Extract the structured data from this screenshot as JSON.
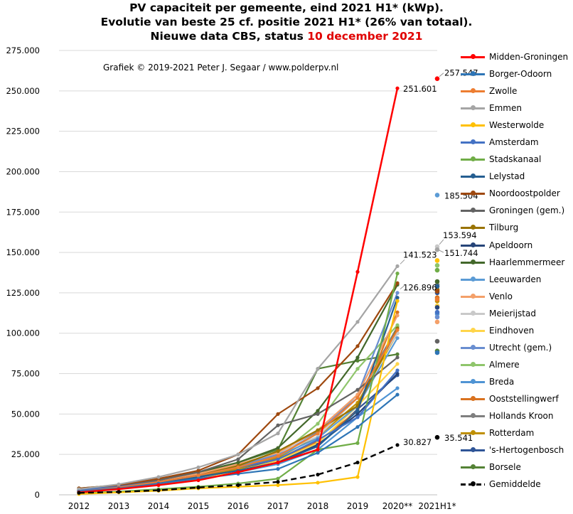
{
  "title": {
    "line1": "PV capaciteit per gemeente, eind 2021 H1* (kWp).",
    "line2": "Evolutie van beste 25 cf. positie 2021 H1* (26% van totaal).",
    "line3_prefix": "Nieuwe data CBS, status ",
    "line3_date": "10 december 2021"
  },
  "credit": "Grafiek © 2019-2021 Peter J. Segaar / www.polderpv.nl",
  "colors": {
    "title_date": "#e00000",
    "grid": "#d9d9d9",
    "axis": "#bfbfbf"
  },
  "chart_data": {
    "type": "line",
    "categories": [
      "2012",
      "2013",
      "2014",
      "2015",
      "2016",
      "2017",
      "2018",
      "2019",
      "2020**",
      "2021H1*"
    ],
    "ylim": [
      0,
      275000
    ],
    "yticks": [
      "0",
      "25.000",
      "50.000",
      "75.000",
      "100.000",
      "125.000",
      "150.000",
      "175.000",
      "200.000",
      "225.000",
      "250.000",
      "275.000"
    ],
    "grid": true,
    "legend_position": "right",
    "series": [
      {
        "name": "Midden-Groningen",
        "color": "#ff0000",
        "values": [
          1500,
          3500,
          6000,
          9000,
          14000,
          20000,
          28000,
          138000,
          251601,
          257547
        ]
      },
      {
        "name": "Borger-Odoorn",
        "color": "#2e75b6",
        "values": [
          2000,
          4000,
          7000,
          10000,
          13000,
          16000,
          26000,
          42000,
          62000,
          88000
        ]
      },
      {
        "name": "Zwolle",
        "color": "#ed7d31",
        "values": [
          2000,
          4500,
          8000,
          12000,
          17000,
          24000,
          38000,
          60000,
          102000,
          121000
        ]
      },
      {
        "name": "Emmen",
        "color": "#a5a5a5",
        "values": [
          3500,
          6500,
          11000,
          17000,
          25000,
          38000,
          78000,
          107000,
          141523,
          151744
        ]
      },
      {
        "name": "Westerwolde",
        "color": "#ffc000",
        "values": [
          500,
          1500,
          2500,
          4000,
          5000,
          6000,
          7500,
          11000,
          120000,
          145000
        ]
      },
      {
        "name": "Amsterdam",
        "color": "#4472c4",
        "values": [
          3000,
          5000,
          8000,
          12000,
          17000,
          22000,
          34000,
          48000,
          77000,
          113000
        ]
      },
      {
        "name": "Stadskanaal",
        "color": "#70ad47",
        "values": [
          1000,
          2000,
          3500,
          5000,
          7000,
          10000,
          28000,
          32000,
          137000,
          139000
        ]
      },
      {
        "name": "Lelystad",
        "color": "#255e91",
        "values": [
          2500,
          4500,
          7000,
          11000,
          15000,
          20000,
          30000,
          52000,
          122000,
          129000
        ]
      },
      {
        "name": "Noordoostpolder",
        "color": "#9e480e",
        "values": [
          4000,
          6000,
          10000,
          15000,
          25000,
          50000,
          66000,
          92000,
          131000,
          126000
        ]
      },
      {
        "name": "Groningen (gem.)",
        "color": "#636363",
        "values": [
          3000,
          5500,
          9000,
          14000,
          22000,
          43000,
          50000,
          65000,
          85000,
          95000
        ]
      },
      {
        "name": "Tilburg",
        "color": "#997300",
        "values": [
          2500,
          5000,
          8000,
          12000,
          18000,
          27000,
          40000,
          55000,
          103000,
          127000
        ]
      },
      {
        "name": "Apeldoorn",
        "color": "#264478",
        "values": [
          2000,
          4000,
          7000,
          11000,
          15000,
          20000,
          31000,
          50000,
          75000,
          116000
        ]
      },
      {
        "name": "Haarlemmermeer",
        "color": "#43682b",
        "values": [
          3000,
          5500,
          9500,
          14000,
          20000,
          29000,
          52000,
          85000,
          130000,
          132000
        ]
      },
      {
        "name": "Leeuwarden",
        "color": "#5b9bd5",
        "values": [
          3000,
          5000,
          8000,
          12000,
          17000,
          24000,
          35000,
          55000,
          97000,
          185504
        ]
      },
      {
        "name": "Venlo",
        "color": "#f4a069",
        "values": [
          2500,
          5000,
          8500,
          13000,
          19000,
          26000,
          40000,
          62000,
          111000,
          107000
        ]
      },
      {
        "name": "Meierijstad",
        "color": "#c9c9c9",
        "values": [
          3000,
          5500,
          9000,
          13000,
          19000,
          26000,
          36000,
          60000,
          100000,
          153594
        ]
      },
      {
        "name": "Eindhoven",
        "color": "#ffd54a",
        "values": [
          2000,
          4000,
          7000,
          10000,
          15000,
          21000,
          32000,
          55000,
          81000,
          117000
        ]
      },
      {
        "name": "Utrecht (gem.)",
        "color": "#698ed0",
        "values": [
          2500,
          5000,
          8000,
          12000,
          18000,
          25000,
          38000,
          62000,
          125000,
          110000
        ]
      },
      {
        "name": "Almere",
        "color": "#8fc56b",
        "values": [
          3000,
          5500,
          9000,
          13000,
          18000,
          24000,
          44000,
          78000,
          105000,
          142000
        ]
      },
      {
        "name": "Breda",
        "color": "#4f94d4",
        "values": [
          2000,
          4000,
          6500,
          10000,
          14000,
          19000,
          28000,
          48000,
          66000,
          112000
        ]
      },
      {
        "name": "Ooststellingwerf",
        "color": "#d9721f",
        "values": [
          2000,
          4500,
          8000,
          12000,
          17000,
          22000,
          33000,
          52000,
          113000,
          122000
        ]
      },
      {
        "name": "Hollands Kroon",
        "color": "#7f7f7f",
        "values": [
          2500,
          5000,
          8500,
          12500,
          18000,
          27000,
          39000,
          60000,
          104000,
          130000
        ]
      },
      {
        "name": "Rotterdam",
        "color": "#bf8f00",
        "values": [
          2000,
          4500,
          7500,
          11000,
          16000,
          23000,
          36000,
          57000,
          100000,
          120000
        ]
      },
      {
        "name": "'s-Hertogenbosch",
        "color": "#2f5597",
        "values": [
          2500,
          5000,
          8000,
          12000,
          16000,
          21000,
          30000,
          53000,
          74000,
          125000
        ]
      },
      {
        "name": "Borsele",
        "color": "#548235",
        "values": [
          4000,
          6000,
          9000,
          14000,
          20000,
          28000,
          78000,
          83000,
          87000,
          89000
        ]
      },
      {
        "name": "Gemiddelde",
        "color": "#000000",
        "dashed": true,
        "values": [
          1200,
          1800,
          2800,
          4500,
          6000,
          8000,
          12500,
          20000,
          30827,
          35541
        ]
      }
    ],
    "annotations": [
      {
        "category": "2020**",
        "value": 251601,
        "text": "251.601"
      },
      {
        "category": "2020**",
        "value": 141523,
        "text": "141.523"
      },
      {
        "category": "2020**",
        "value": 126896,
        "text": "126.896"
      },
      {
        "category": "2020**",
        "value": 30827,
        "text": "30.827"
      },
      {
        "category": "2021H1*",
        "value": 257547,
        "text": "257.547"
      },
      {
        "category": "2021H1*",
        "value": 185504,
        "text": "185.504"
      },
      {
        "category": "2021H1*",
        "value": 153594,
        "text": "153.594"
      },
      {
        "category": "2021H1*",
        "value": 151744,
        "text": "151.744"
      },
      {
        "category": "2021H1*",
        "value": 35541,
        "text": "35.541"
      }
    ]
  }
}
